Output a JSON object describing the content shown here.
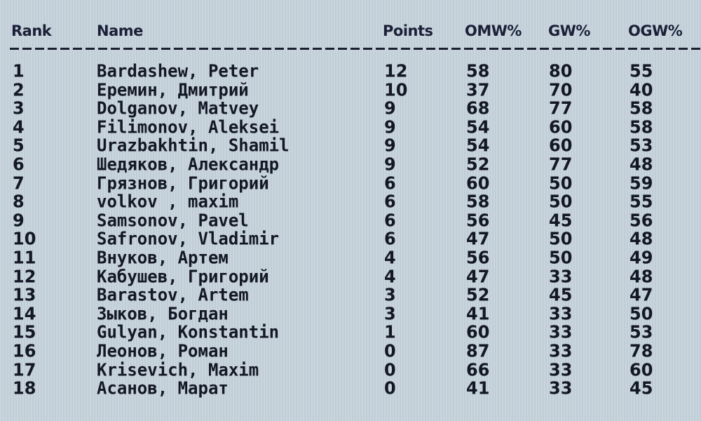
{
  "headers": {
    "rank": "Rank",
    "name": "Name",
    "points": "Points",
    "omw": "OMW%",
    "gw": "GW%",
    "ogw": "OGW%"
  },
  "rows": [
    {
      "rank": "1",
      "name": "Bardashew, Peter",
      "points": "12",
      "omw": "58",
      "gw": "80",
      "ogw": "55"
    },
    {
      "rank": "2",
      "name": "Еремин, Дмитрий",
      "points": "10",
      "omw": "37",
      "gw": "70",
      "ogw": "40"
    },
    {
      "rank": "3",
      "name": "Dolganov, Matvey",
      "points": "9",
      "omw": "68",
      "gw": "77",
      "ogw": "58"
    },
    {
      "rank": "4",
      "name": "Filimonov, Aleksei",
      "points": "9",
      "omw": "54",
      "gw": "60",
      "ogw": "58"
    },
    {
      "rank": "5",
      "name": "Urazbakhtin, Shamil",
      "points": "9",
      "omw": "54",
      "gw": "60",
      "ogw": "53"
    },
    {
      "rank": "6",
      "name": "Шедяков, Александр",
      "points": "9",
      "omw": "52",
      "gw": "77",
      "ogw": "48"
    },
    {
      "rank": "7",
      "name": "Грязнов, Григорий",
      "points": "6",
      "omw": "60",
      "gw": "50",
      "ogw": "59"
    },
    {
      "rank": "8",
      "name": "volkov , maxim",
      "points": "6",
      "omw": "58",
      "gw": "50",
      "ogw": "55"
    },
    {
      "rank": "9",
      "name": "Samsonov, Pavel",
      "points": "6",
      "omw": "56",
      "gw": "45",
      "ogw": "56"
    },
    {
      "rank": "10",
      "name": "Safronov, Vladimir",
      "points": "6",
      "omw": "47",
      "gw": "50",
      "ogw": "48"
    },
    {
      "rank": "11",
      "name": "Внуков, Артем",
      "points": "4",
      "omw": "56",
      "gw": "50",
      "ogw": "49"
    },
    {
      "rank": "12",
      "name": "Кабушев, Григорий",
      "points": "4",
      "omw": "47",
      "gw": "33",
      "ogw": "48"
    },
    {
      "rank": "13",
      "name": "Barastov, Artem",
      "points": "3",
      "omw": "52",
      "gw": "45",
      "ogw": "47"
    },
    {
      "rank": "14",
      "name": "Зыков, Богдан",
      "points": "3",
      "omw": "41",
      "gw": "33",
      "ogw": "50"
    },
    {
      "rank": "15",
      "name": "Gulyan, Konstantin",
      "points": "1",
      "omw": "60",
      "gw": "33",
      "ogw": "53"
    },
    {
      "rank": "16",
      "name": "Леонов, Роман",
      "points": "0",
      "omw": "87",
      "gw": "33",
      "ogw": "78"
    },
    {
      "rank": "17",
      "name": "Krisevich, Maxim",
      "points": "0",
      "omw": "66",
      "gw": "33",
      "ogw": "60"
    },
    {
      "rank": "18",
      "name": "Асанов, Марат",
      "points": "0",
      "omw": "41",
      "gw": "33",
      "ogw": "45"
    }
  ]
}
